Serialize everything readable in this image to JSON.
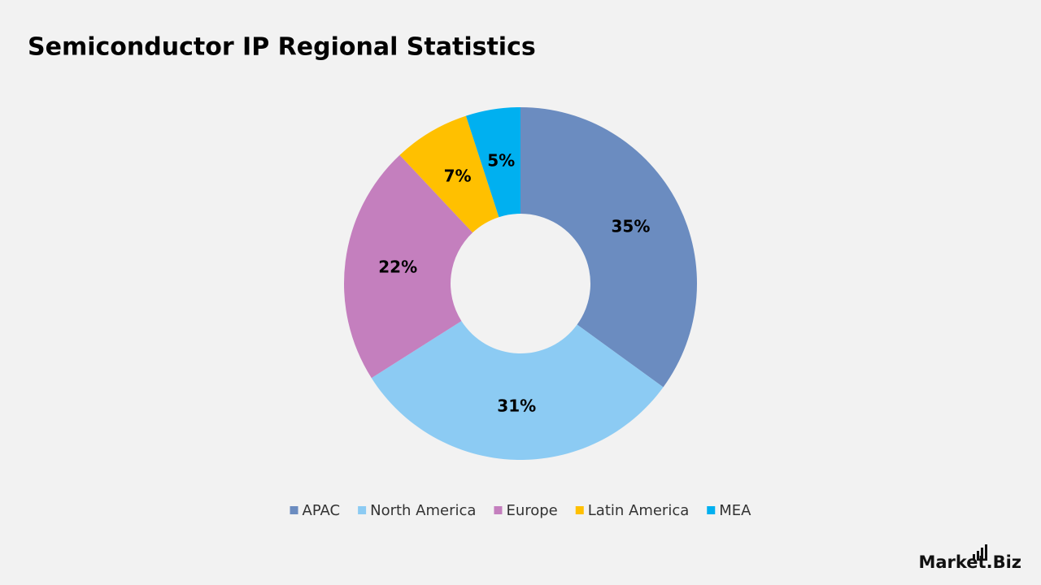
{
  "chart_data": {
    "type": "donut",
    "title": "Semiconductor IP Regional Statistics",
    "categories": [
      "APAC",
      "North America",
      "Europe",
      "Latin America",
      "MEA"
    ],
    "values": [
      35,
      31,
      22,
      7,
      5
    ],
    "value_labels": [
      "35%",
      "31%",
      "22%",
      "7%",
      "5%"
    ],
    "colors": [
      "#6b8cc0",
      "#8ccbf3",
      "#c47fbe",
      "#ffc000",
      "#00b0f0"
    ],
    "legend": "bottom"
  },
  "brand": "Market.Biz"
}
